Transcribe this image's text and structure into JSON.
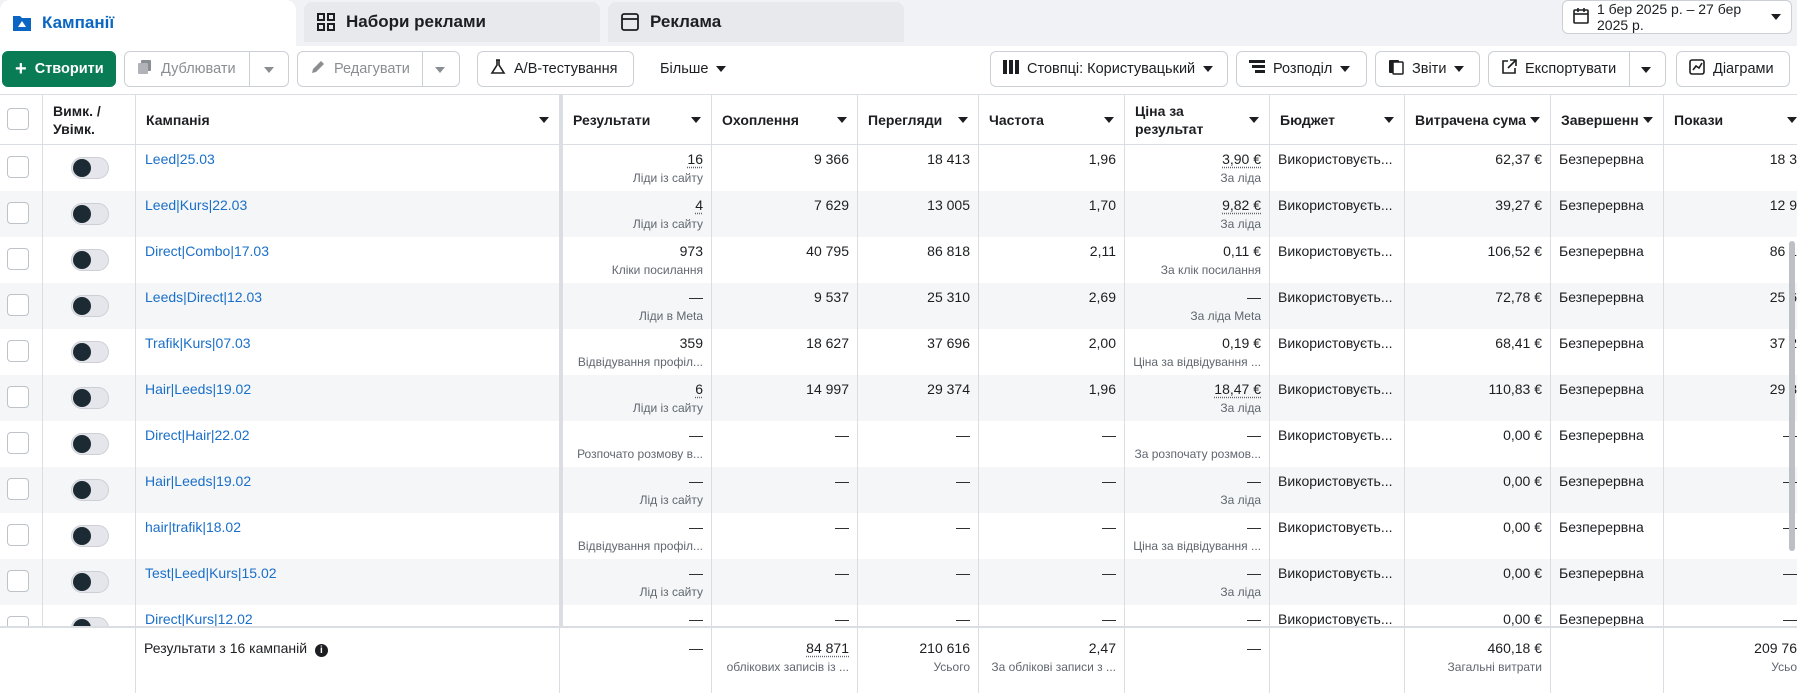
{
  "tabs": [
    {
      "label": "Кампанії",
      "icon": "folder-icon"
    },
    {
      "label": "Набори реклами",
      "icon": "grid-icon"
    },
    {
      "label": "Реклама",
      "icon": "ad-icon"
    }
  ],
  "date_range": "1 бер 2025 р. – 27 бер 2025 р.",
  "toolbar": {
    "create": "Створити",
    "duplicate": "Дублювати",
    "edit": "Редагувати",
    "ab_test": "A/B-тестування",
    "more": "Більше",
    "columns": "Стовпці: Користувацький",
    "breakdown": "Розподіл",
    "reports": "Звіти",
    "export": "Експортувати",
    "charts": "Діаграми"
  },
  "headers": {
    "onoff": "Вимк. / Увімк.",
    "campaign": "Кампанія",
    "results": "Результати",
    "reach": "Охоплення",
    "views": "Перегляди",
    "frequency": "Частота",
    "cost_per_result": "Ціна за результат",
    "budget": "Бюджет",
    "spent": "Витрачена сума",
    "ends": "Завершенн",
    "impressions": "Покази"
  },
  "rows": [
    {
      "name": "Leed|25.03",
      "result": "16",
      "result_sub": "Ліди із сайту",
      "reach": "9 366",
      "views": "18 413",
      "freq": "1,96",
      "cpr": "3,90 €",
      "cpr_sub": "За ліда",
      "budget": "Використовуєть...",
      "spent": "62,37 €",
      "ends": "Безперервна",
      "impr": "18 3"
    },
    {
      "name": "Leed|Kurs|22.03",
      "result": "4",
      "result_sub": "Ліди із сайту",
      "reach": "7 629",
      "views": "13 005",
      "freq": "1,70",
      "cpr": "9,82 €",
      "cpr_sub": "За ліда",
      "budget": "Використовуєть...",
      "spent": "39,27 €",
      "ends": "Безперервна",
      "impr": "12 9"
    },
    {
      "name": "Direct|Combo|17.03",
      "result": "973",
      "result_sub": "Кліки посилання",
      "reach": "40 795",
      "views": "86 818",
      "freq": "2,11",
      "cpr": "0,11 €",
      "cpr_sub": "За клік посилання",
      "budget": "Використовуєть...",
      "spent": "106,52 €",
      "ends": "Безперервна",
      "impr": "86 1"
    },
    {
      "name": "Leeds|Direct|12.03",
      "result": "—",
      "result_sub": "Ліди в Meta",
      "reach": "9 537",
      "views": "25 310",
      "freq": "2,69",
      "cpr": "—",
      "cpr_sub": "За ліда Meta",
      "budget": "Використовуєть...",
      "spent": "72,78 €",
      "ends": "Безперервна",
      "impr": "25 6"
    },
    {
      "name": "Trafik|Kurs|07.03",
      "result": "359",
      "result_sub": "Відвідування профіл...",
      "reach": "18 627",
      "views": "37 696",
      "freq": "2,00",
      "cpr": "0,19 €",
      "cpr_sub": "Ціна за відвідування ...",
      "budget": "Використовуєть...",
      "spent": "68,41 €",
      "ends": "Безперервна",
      "impr": "37 2"
    },
    {
      "name": "Hair|Leeds|19.02",
      "result": "6",
      "result_sub": "Ліди із сайту",
      "reach": "14 997",
      "views": "29 374",
      "freq": "1,96",
      "cpr": "18,47 €",
      "cpr_sub": "За ліда",
      "budget": "Використовуєть...",
      "spent": "110,83 €",
      "ends": "Безперервна",
      "impr": "29 3"
    },
    {
      "name": "Direct|Hair|22.02",
      "result": "—",
      "result_sub": "Розпочато розмову в...",
      "reach": "—",
      "views": "—",
      "freq": "—",
      "cpr": "—",
      "cpr_sub": "За розпочату розмов...",
      "budget": "Використовуєть...",
      "spent": "0,00 €",
      "ends": "Безперервна",
      "impr": "—"
    },
    {
      "name": "Hair|Leeds|19.02",
      "result": "—",
      "result_sub": "Лід із сайту",
      "reach": "—",
      "views": "—",
      "freq": "—",
      "cpr": "—",
      "cpr_sub": "За ліда",
      "budget": "Використовуєть...",
      "spent": "0,00 €",
      "ends": "Безперервна",
      "impr": "—"
    },
    {
      "name": "hair|trafik|18.02",
      "result": "—",
      "result_sub": "Відвідування профіл...",
      "reach": "—",
      "views": "—",
      "freq": "—",
      "cpr": "—",
      "cpr_sub": "Ціна за відвідування ...",
      "budget": "Використовуєть...",
      "spent": "0,00 €",
      "ends": "Безперервна",
      "impr": "—"
    },
    {
      "name": "Test|Leed|Kurs|15.02",
      "result": "—",
      "result_sub": "Лід із сайту",
      "reach": "—",
      "views": "—",
      "freq": "—",
      "cpr": "—",
      "cpr_sub": "За ліда",
      "budget": "Використовуєть...",
      "spent": "0,00 €",
      "ends": "Безперервна",
      "impr": "—"
    },
    {
      "name": "Direct|Kurs|12.02",
      "result": "—",
      "result_sub": "",
      "reach": "—",
      "views": "—",
      "freq": "—",
      "cpr": "—",
      "cpr_sub": "",
      "budget": "Використовуєть...",
      "spent": "0,00 €",
      "ends": "Безперервна",
      "impr": "—"
    }
  ],
  "footer": {
    "label": "Результати з 16 кампаній",
    "results": "—",
    "reach": "84 871",
    "reach_sub": "облікових записів із ...",
    "views": "210 616",
    "views_sub": "Усього",
    "freq": "2,47",
    "freq_sub": "За облікові записи з ...",
    "cpr": "—",
    "spent": "460,18 €",
    "spent_sub": "Загальні витрати",
    "impr": "209 76",
    "impr_sub": "Усьо"
  }
}
